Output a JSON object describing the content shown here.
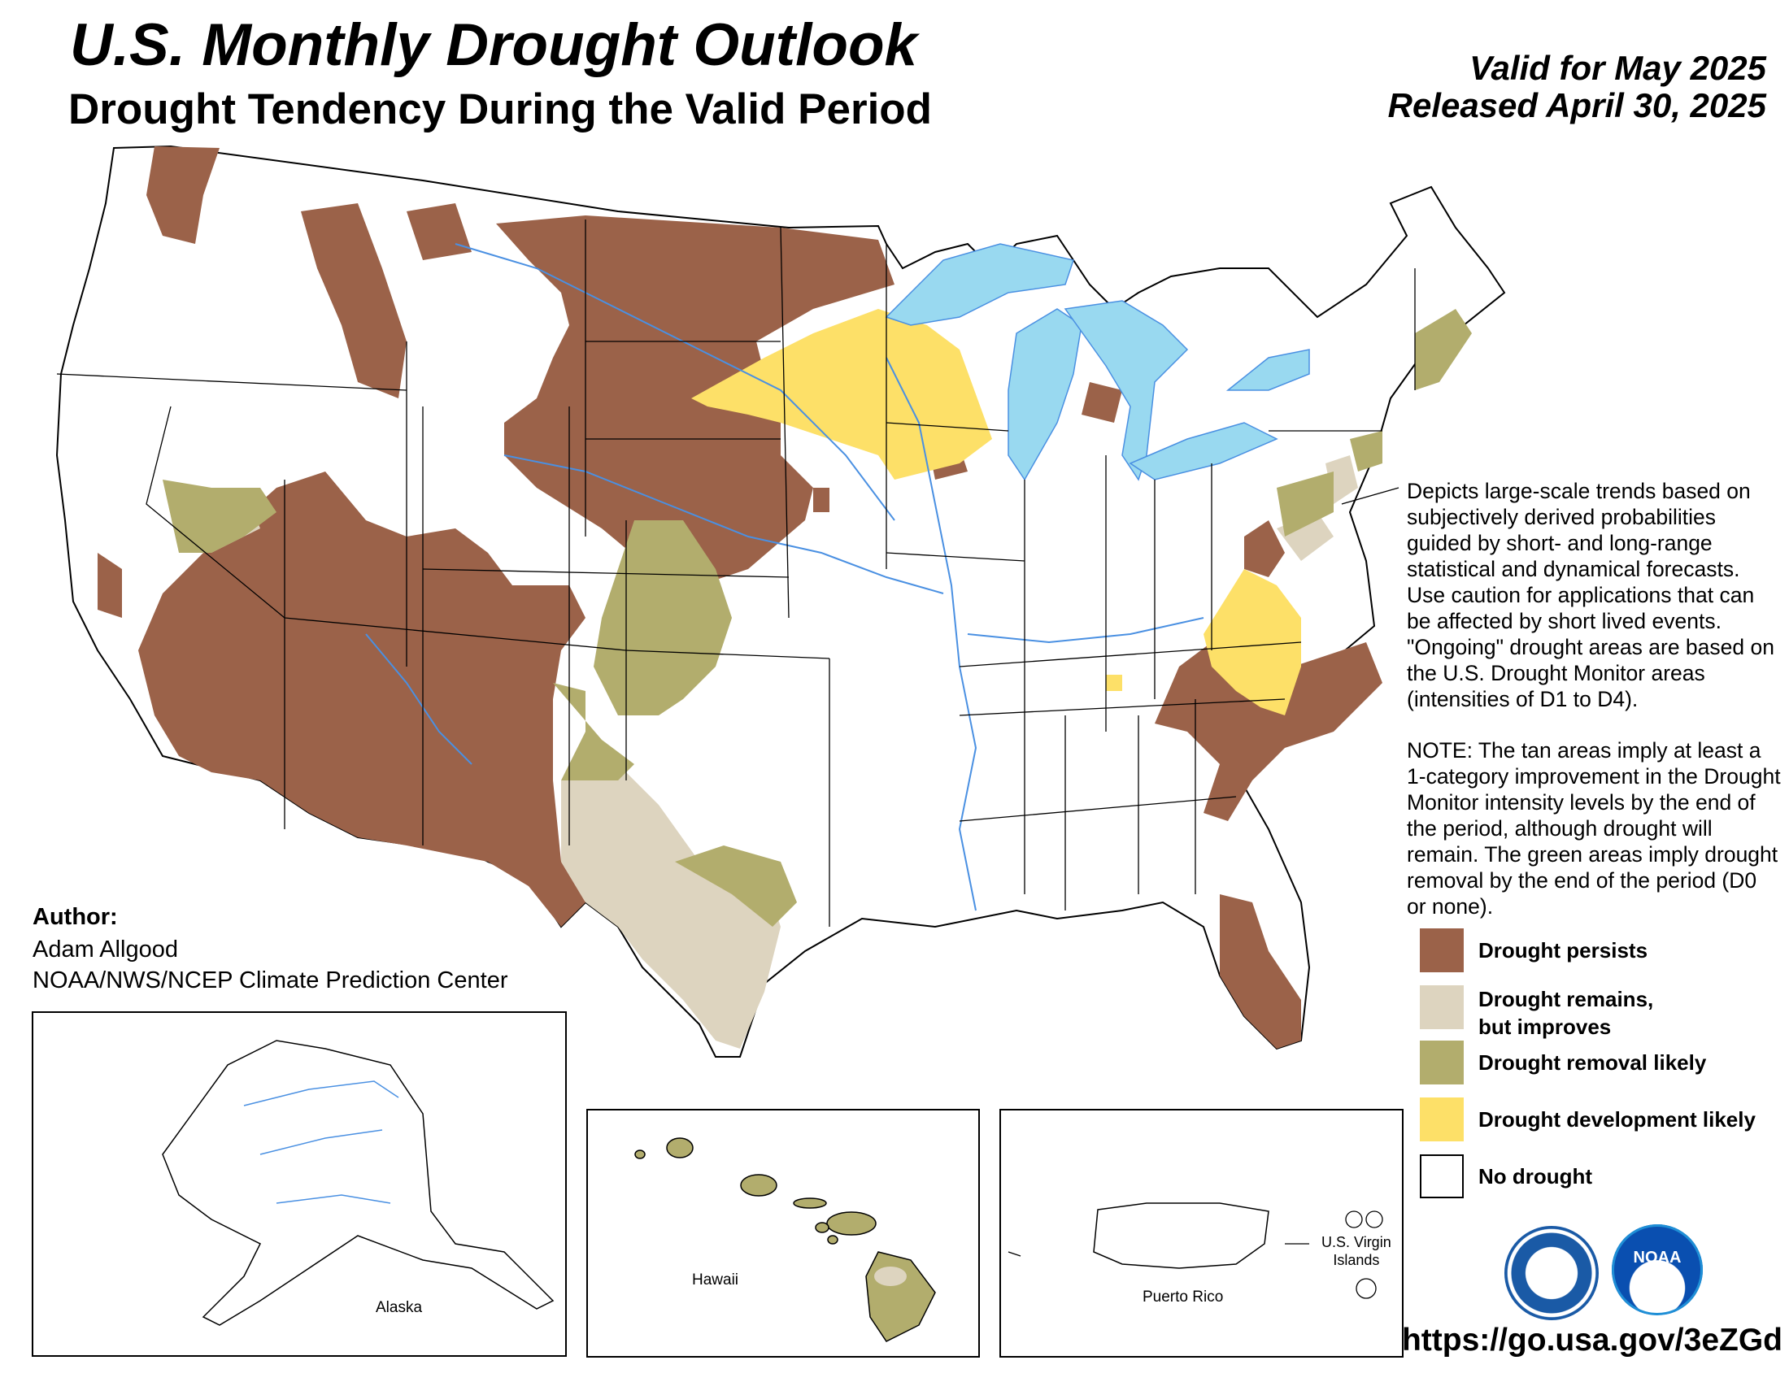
{
  "header": {
    "title": "U.S. Monthly Drought Outlook",
    "subtitle": "Drought Tendency During the Valid Period",
    "valid": "Valid for May 2025",
    "released": "Released April 30, 2025"
  },
  "description": {
    "paragraph1": "Depicts large-scale trends based on subjectively derived probabilities guided by short- and long-range statistical and dynamical forecasts. Use caution for applications that can be affected by short lived events. \"Ongoing\" drought areas are based on the U.S. Drought Monitor areas (intensities of D1 to D4).",
    "paragraph2": "NOTE: The tan areas imply at least a 1-category improvement in the Drought Monitor intensity levels by the end of the period, although drought will remain. The green areas imply drought removal by the end of the period (D0 or none)."
  },
  "legend": {
    "items": [
      {
        "label": "Drought persists",
        "color": "#9b6249"
      },
      {
        "label": "Drought remains,\nbut improves",
        "color": "#ddd4bf"
      },
      {
        "label": "Drought removal likely",
        "color": "#b2ad6d"
      },
      {
        "label": "Drought development likely",
        "color": "#fde068"
      },
      {
        "label": "No drought",
        "color": "#ffffff"
      }
    ]
  },
  "author": {
    "heading": "Author:",
    "name": "Adam Allgood",
    "org": "NOAA/NWS/NCEP Climate Prediction Center"
  },
  "insets": {
    "alaska": "Alaska",
    "hawaii": "Hawaii",
    "puerto_rico": "Puerto Rico",
    "virgin_islands": "U.S. Virgin\nIslands"
  },
  "logos": {
    "commerce": "department-of-commerce-seal",
    "noaa": "NOAA"
  },
  "url": "https://go.usa.gov/3eZGd",
  "colors": {
    "water": "#99d9f0",
    "rivers": "#4a90e2",
    "borders": "#000000"
  }
}
